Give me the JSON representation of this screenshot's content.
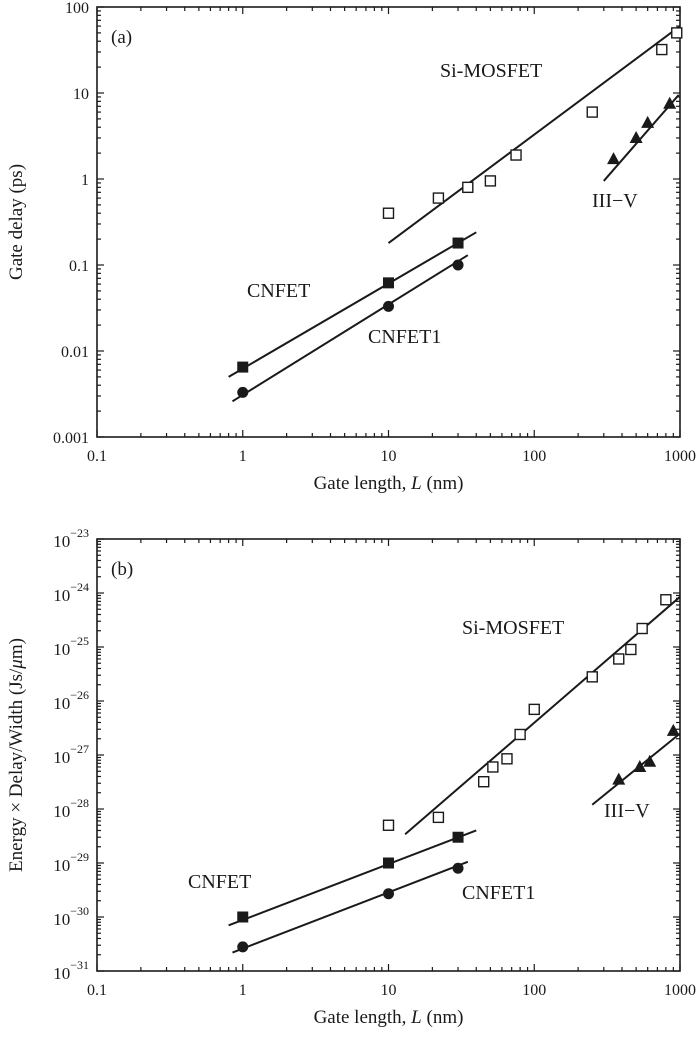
{
  "chart_data": [
    {
      "type": "scatter",
      "panel_label": "(a)",
      "xlabel_prefix": "Gate length, ",
      "xlabel_var": "L",
      "xlabel_suffix": " (nm)",
      "ylabel": "Gate delay (ps)",
      "xscale": "log",
      "yscale": "log",
      "xlim": [
        0.1,
        1000
      ],
      "ylim": [
        0.001,
        100
      ],
      "x_tick_labels": [
        "0.1",
        "1",
        "10",
        "100",
        "1000"
      ],
      "y_tick_labels": [
        "0.001",
        "0.01",
        "0.1",
        "1",
        "10",
        "100"
      ],
      "grid": false,
      "series": [
        {
          "name": "Si-MOSFET",
          "marker": "open-square",
          "points": [
            [
              10,
              0.4
            ],
            [
              22,
              0.6
            ],
            [
              35,
              0.8
            ],
            [
              50,
              0.95
            ],
            [
              75,
              1.9
            ],
            [
              250,
              6
            ],
            [
              750,
              32
            ],
            [
              950,
              50
            ]
          ],
          "fit": [
            [
              10,
              0.18
            ],
            [
              1000,
              60
            ]
          ]
        },
        {
          "name": "III−V",
          "marker": "filled-triangle",
          "points": [
            [
              350,
              1.7
            ],
            [
              500,
              3
            ],
            [
              600,
              4.5
            ],
            [
              850,
              7.5
            ]
          ],
          "fit": [
            [
              300,
              0.95
            ],
            [
              980,
              9.5
            ]
          ]
        },
        {
          "name": "CNFET",
          "marker": "filled-square",
          "points": [
            [
              1,
              0.0065
            ],
            [
              10,
              0.062
            ],
            [
              30,
              0.18
            ]
          ],
          "fit": [
            [
              0.8,
              0.005
            ],
            [
              40,
              0.24
            ]
          ]
        },
        {
          "name": "CNFET1",
          "marker": "filled-circle",
          "points": [
            [
              1,
              0.0033
            ],
            [
              10,
              0.033
            ],
            [
              30,
              0.1
            ]
          ],
          "fit": [
            [
              0.85,
              0.0026
            ],
            [
              35,
              0.13
            ]
          ]
        }
      ]
    },
    {
      "type": "scatter",
      "panel_label": "(b)",
      "xlabel_prefix": "Gate length, ",
      "xlabel_var": "L",
      "xlabel_suffix": " (nm)",
      "ylabel_prefix": "Energy × Delay/Width (Js/",
      "ylabel_mu": "μ",
      "ylabel_suffix": "m)",
      "xscale": "log",
      "yscale": "log",
      "xlim": [
        0.1,
        1000
      ],
      "ylim": [
        1e-31,
        1e-23
      ],
      "x_tick_labels": [
        "0.1",
        "1",
        "10",
        "100",
        "1000"
      ],
      "y_tick_base": "10",
      "y_tick_exponents": [
        "−31",
        "−30",
        "−29",
        "−28",
        "−27",
        "−26",
        "−25",
        "−24",
        "−23"
      ],
      "grid": false,
      "series": [
        {
          "name": "Si-MOSFET",
          "marker": "open-square",
          "points": [
            [
              10,
              5e-29
            ],
            [
              22,
              7e-29
            ],
            [
              45,
              3.2e-28
            ],
            [
              52,
              6e-28
            ],
            [
              65,
              8.5e-28
            ],
            [
              80,
              2.4e-27
            ],
            [
              100,
              7e-27
            ],
            [
              250,
              2.8e-26
            ],
            [
              380,
              6e-26
            ],
            [
              460,
              9e-26
            ],
            [
              550,
              2.2e-25
            ],
            [
              800,
              7.5e-25
            ]
          ],
          "fit": [
            [
              13,
              3.4e-29
            ],
            [
              1000,
              8.5e-25
            ]
          ]
        },
        {
          "name": "III−V",
          "marker": "filled-triangle",
          "points": [
            [
              380,
              3.5e-28
            ],
            [
              530,
              6e-28
            ],
            [
              620,
              7.5e-28
            ],
            [
              900,
              2.8e-27
            ]
          ],
          "fit": [
            [
              250,
              1.2e-28
            ],
            [
              1000,
              2.5e-27
            ]
          ]
        },
        {
          "name": "CNFET",
          "marker": "filled-square",
          "points": [
            [
              1,
              1e-30
            ],
            [
              10,
              1e-29
            ],
            [
              30,
              3e-29
            ]
          ],
          "fit": [
            [
              0.8,
              7e-31
            ],
            [
              40,
              4e-29
            ]
          ]
        },
        {
          "name": "CNFET1",
          "marker": "filled-circle",
          "points": [
            [
              1,
              2.8e-31
            ],
            [
              10,
              2.7e-30
            ],
            [
              30,
              8e-30
            ]
          ],
          "fit": [
            [
              0.85,
              2.2e-31
            ],
            [
              35,
              1.05e-29
            ]
          ]
        }
      ]
    }
  ]
}
